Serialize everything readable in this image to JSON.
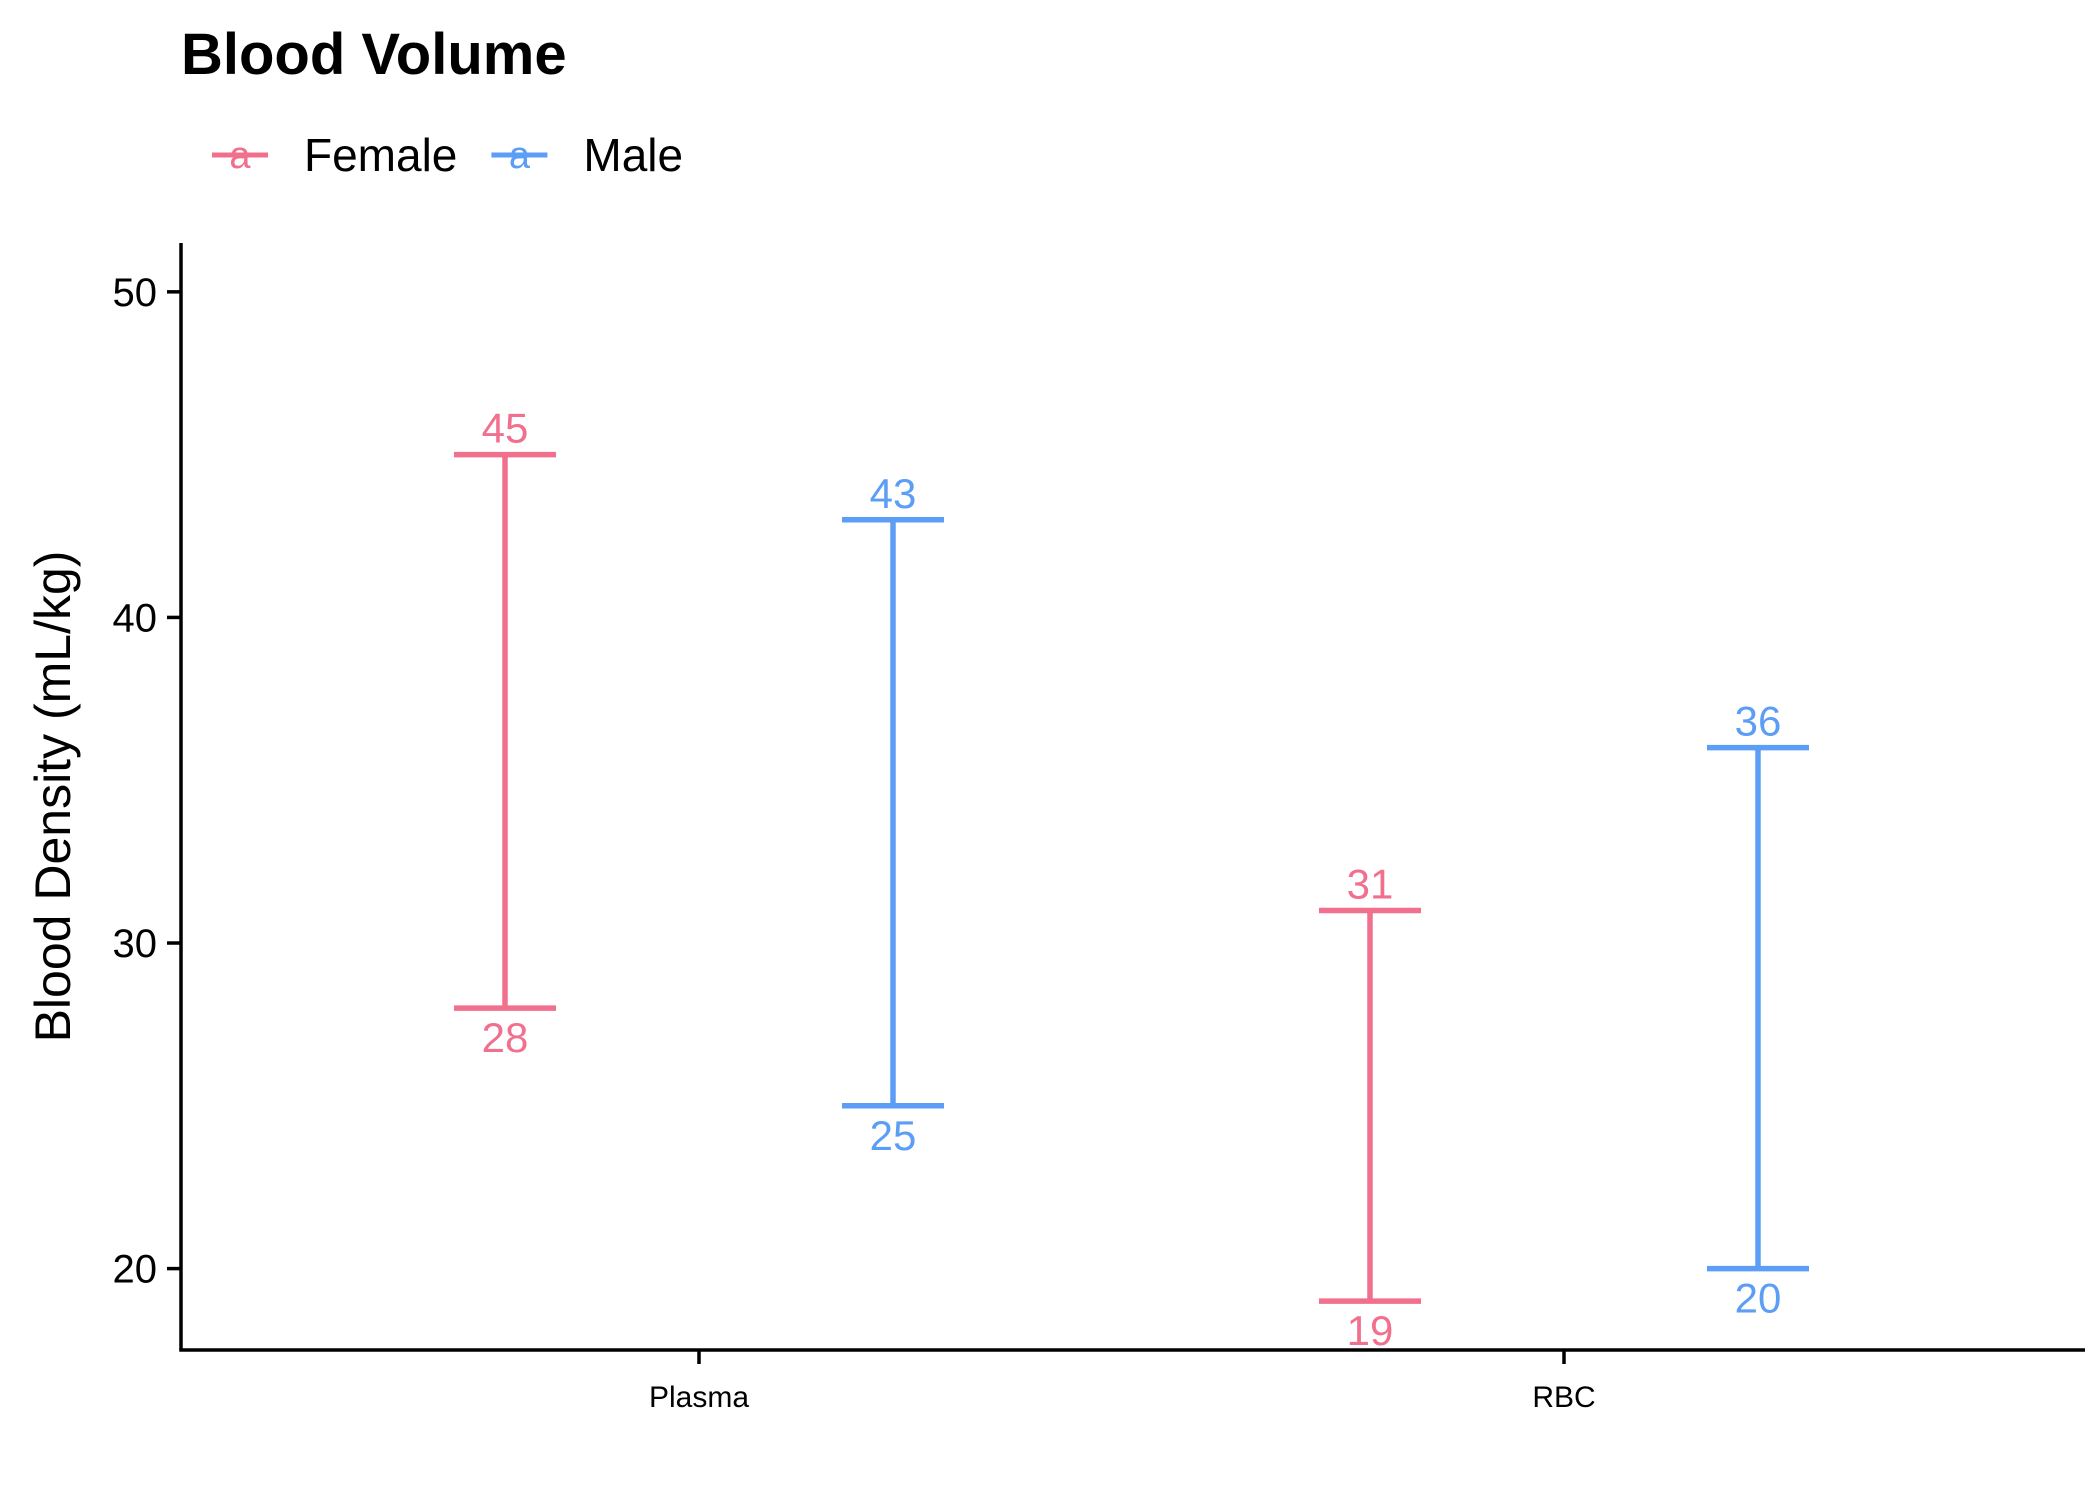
{
  "chart_data": {
    "type": "errorbar",
    "title": "Blood Volume",
    "xlabel": "",
    "ylabel": "Blood Density (mL/kg)",
    "categories": [
      "Plasma",
      "RBC"
    ],
    "ylim": [
      17.5,
      51.5
    ],
    "yticks": [
      20,
      30,
      40,
      50
    ],
    "ytick_labels": [
      "20",
      "30",
      "40",
      "50"
    ],
    "grid": false,
    "legend": {
      "position": "top-left",
      "key_glyph": "a",
      "entries": [
        "Female",
        "Male"
      ]
    },
    "series": [
      {
        "name": "Female",
        "color": "#F0708E",
        "low": [
          28,
          19
        ],
        "high": [
          45,
          31
        ],
        "low_labels": [
          "28",
          "19"
        ],
        "high_labels": [
          "45",
          "31"
        ]
      },
      {
        "name": "Male",
        "color": "#5C9EF5",
        "low": [
          25,
          20
        ],
        "high": [
          43,
          36
        ],
        "low_labels": [
          "25",
          "20"
        ],
        "high_labels": [
          "43",
          "36"
        ]
      }
    ]
  }
}
